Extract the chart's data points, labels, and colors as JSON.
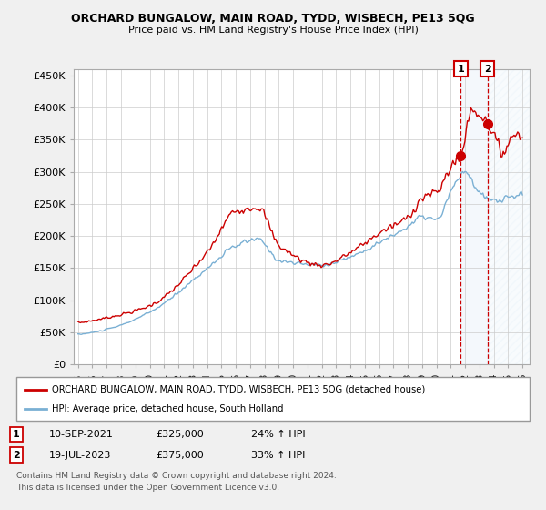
{
  "title": "ORCHARD BUNGALOW, MAIN ROAD, TYDD, WISBECH, PE13 5QG",
  "subtitle": "Price paid vs. HM Land Registry's House Price Index (HPI)",
  "ylabel_ticks": [
    "£0",
    "£50K",
    "£100K",
    "£150K",
    "£200K",
    "£250K",
    "£300K",
    "£350K",
    "£400K",
    "£450K"
  ],
  "ytick_values": [
    0,
    50000,
    100000,
    150000,
    200000,
    250000,
    300000,
    350000,
    400000,
    450000
  ],
  "ylim": [
    0,
    460000
  ],
  "xlim_start": 1994.7,
  "xlim_end": 2026.5,
  "hpi_color": "#7ab0d4",
  "price_color": "#cc0000",
  "marker1_date": 2021.7,
  "marker1_price": 325000,
  "marker2_date": 2023.55,
  "marker2_price": 375000,
  "legend_label1": "ORCHARD BUNGALOW, MAIN ROAD, TYDD, WISBECH, PE13 5QG (detached house)",
  "legend_label2": "HPI: Average price, detached house, South Holland",
  "sale1_date": "10-SEP-2021",
  "sale1_price": "£325,000",
  "sale1_hpi": "24% ↑ HPI",
  "sale2_date": "19-JUL-2023",
  "sale2_price": "£375,000",
  "sale2_hpi": "33% ↑ HPI",
  "footer": "Contains HM Land Registry data © Crown copyright and database right 2024.\nThis data is licensed under the Open Government Licence v3.0.",
  "background_color": "#f0f0f0",
  "plot_bg_color": "#ffffff",
  "grid_color": "#cccccc"
}
